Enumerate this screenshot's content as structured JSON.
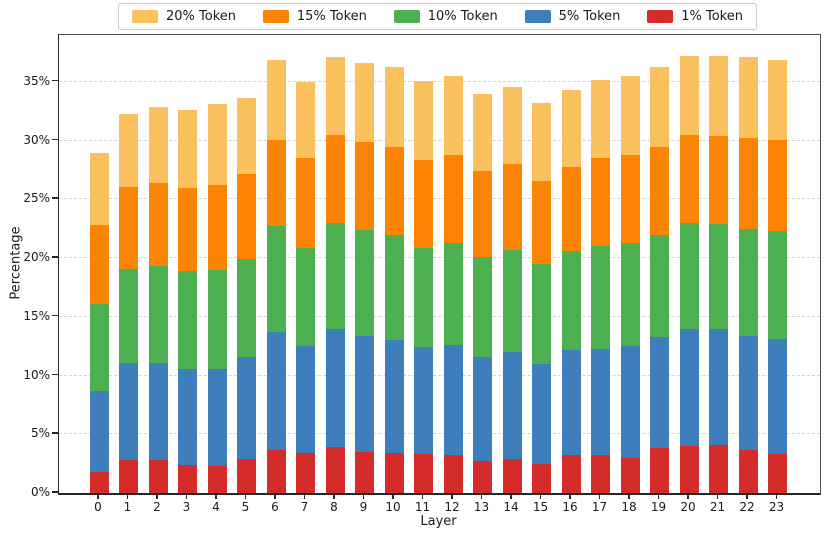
{
  "figure": {
    "background": "#ffffff",
    "grid_color": "#d4d4d4",
    "spine_color": "#333333"
  },
  "chart_data": {
    "type": "bar",
    "stacked": true,
    "title": "",
    "xlabel": "Layer",
    "ylabel": "Percentage",
    "ylim": [
      0,
      39
    ],
    "grid": "horizontal-dashed",
    "legend_position": "top-outside",
    "legend_order": [
      "20% Token",
      "15% Token",
      "10% Token",
      "5% Token",
      "1% Token"
    ],
    "ytick_values": [
      0,
      5,
      10,
      15,
      20,
      25,
      30,
      35
    ],
    "ytick_labels": [
      "0%",
      "5%",
      "10%",
      "15%",
      "20%",
      "25%",
      "30%",
      "35%"
    ],
    "categories": [
      "0",
      "1",
      "2",
      "3",
      "4",
      "5",
      "6",
      "7",
      "8",
      "9",
      "10",
      "11",
      "12",
      "13",
      "14",
      "15",
      "16",
      "17",
      "18",
      "19",
      "20",
      "21",
      "22",
      "23"
    ],
    "series": [
      {
        "name": "1% Token",
        "color": "#d52b2b",
        "values": [
          1.8,
          2.8,
          2.8,
          2.4,
          2.3,
          2.9,
          3.7,
          3.4,
          3.9,
          3.5,
          3.4,
          3.3,
          3.2,
          2.7,
          2.9,
          2.5,
          3.2,
          3.2,
          3.0,
          3.8,
          4.0,
          4.1,
          3.7,
          3.3
        ]
      },
      {
        "name": "5% Token",
        "color": "#3d7ebb",
        "values": [
          6.9,
          8.3,
          8.3,
          8.2,
          8.3,
          8.7,
          10.0,
          9.1,
          10.1,
          9.9,
          9.6,
          9.1,
          9.4,
          8.9,
          9.1,
          8.5,
          9.0,
          9.1,
          9.5,
          9.5,
          10.0,
          9.9,
          9.7,
          9.8
        ]
      },
      {
        "name": "10% Token",
        "color": "#4caf50",
        "values": [
          7.4,
          8.0,
          8.2,
          8.3,
          8.4,
          8.3,
          9.0,
          8.4,
          9.0,
          9.0,
          9.0,
          8.5,
          8.7,
          8.5,
          8.7,
          8.5,
          8.4,
          8.7,
          8.8,
          8.7,
          9.0,
          8.9,
          9.1,
          9.2
        ]
      },
      {
        "name": "15% Token",
        "color": "#fb8402",
        "values": [
          6.7,
          7.0,
          7.1,
          7.1,
          7.2,
          7.3,
          7.4,
          7.6,
          7.5,
          7.5,
          7.5,
          7.5,
          7.5,
          7.3,
          7.3,
          7.1,
          7.2,
          7.5,
          7.5,
          7.5,
          7.5,
          7.5,
          7.7,
          7.8
        ]
      },
      {
        "name": "20% Token",
        "color": "#fbc15e",
        "values": [
          6.2,
          6.2,
          6.5,
          6.6,
          6.9,
          6.4,
          6.8,
          6.5,
          6.6,
          6.7,
          6.8,
          6.7,
          6.7,
          6.6,
          6.6,
          6.6,
          6.5,
          6.7,
          6.7,
          6.8,
          6.7,
          6.8,
          6.9,
          6.8
        ]
      }
    ]
  }
}
